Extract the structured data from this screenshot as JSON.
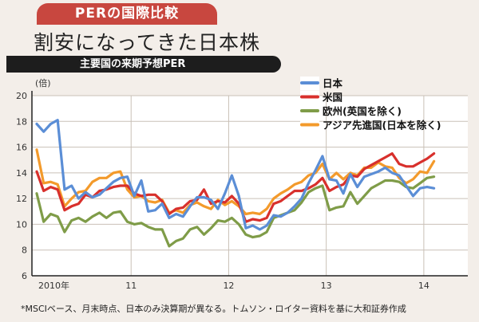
{
  "header": {
    "tag": "PERの国際比較",
    "title": "割安になってきた日本株",
    "subtitle": "主要国の来期予想PER"
  },
  "footnote": "*MSCIベース、月末時点、日本のみ決算期が異なる。トムソン・ロイター資料を基に大和証券作成",
  "colors": {
    "background": "#f3eee9",
    "tag": "#c8473f",
    "grid": "#c9c0b7",
    "axis": "#222222"
  },
  "chart_data": {
    "type": "line",
    "ylabel": "(倍)",
    "ylim": [
      6,
      20
    ],
    "yticks": [
      6,
      8,
      10,
      12,
      14,
      16,
      18,
      20
    ],
    "x_tick_labels": [
      "2010年",
      "11",
      "12",
      "13",
      "14"
    ],
    "legend_position": "top-right",
    "grid": true,
    "series": [
      {
        "name": "日本",
        "color": "#5b8ed6",
        "values": [
          17.8,
          17.2,
          17.8,
          18.1,
          12.7,
          13.0,
          12.0,
          12.5,
          12.1,
          12.3,
          12.8,
          13.3,
          13.6,
          13.7,
          12.2,
          13.4,
          11.0,
          11.1,
          11.6,
          10.5,
          10.8,
          10.6,
          11.4,
          12.1,
          12.1,
          11.9,
          11.2,
          12.4,
          13.8,
          12.2,
          9.7,
          9.9,
          9.6,
          9.9,
          10.7,
          10.6,
          10.9,
          11.4,
          12.0,
          13.2,
          14.2,
          15.3,
          13.5,
          13.4,
          12.4,
          13.9,
          12.9,
          13.7,
          13.9,
          14.1,
          14.4,
          14.0,
          13.8,
          13.0,
          12.2,
          12.8,
          12.9,
          12.8
        ]
      },
      {
        "name": "米国",
        "color": "#d8302c",
        "values": [
          14.1,
          12.6,
          12.9,
          12.7,
          11.1,
          11.4,
          11.6,
          12.3,
          12.1,
          12.6,
          12.7,
          12.9,
          13.0,
          13.0,
          12.4,
          12.2,
          12.3,
          12.3,
          11.8,
          10.8,
          11.2,
          11.3,
          11.8,
          11.9,
          12.7,
          11.6,
          11.8,
          11.7,
          12.2,
          11.6,
          10.2,
          10.4,
          10.3,
          10.5,
          11.6,
          11.8,
          12.2,
          12.6,
          12.6,
          12.8,
          13.1,
          13.6,
          12.6,
          12.9,
          13.1,
          13.8,
          13.7,
          14.3,
          14.6,
          14.9,
          15.2,
          15.5,
          14.7,
          14.5,
          14.5,
          14.8,
          15.1,
          15.5
        ]
      },
      {
        "name": "欧州(英国を除く)",
        "color": "#7f9c48",
        "values": [
          12.4,
          10.2,
          10.8,
          10.6,
          9.4,
          10.3,
          10.5,
          10.2,
          10.6,
          10.9,
          10.5,
          10.9,
          11.0,
          10.2,
          10.0,
          10.1,
          9.8,
          9.6,
          9.6,
          8.3,
          8.7,
          8.9,
          9.6,
          9.8,
          9.2,
          9.7,
          10.3,
          10.2,
          10.5,
          10.0,
          9.2,
          9.0,
          9.1,
          9.4,
          10.5,
          10.7,
          10.9,
          11.1,
          11.7,
          12.5,
          12.8,
          13.0,
          11.1,
          11.3,
          11.4,
          12.5,
          11.6,
          12.2,
          12.8,
          13.1,
          13.4,
          13.4,
          13.3,
          12.9,
          12.8,
          13.2,
          13.6,
          13.7
        ]
      },
      {
        "name": "アジア先進国(日本を除く)",
        "color": "#f39a2b",
        "values": [
          15.8,
          13.2,
          13.3,
          13.1,
          11.4,
          12.0,
          12.5,
          12.6,
          13.3,
          13.6,
          13.6,
          14.0,
          14.1,
          12.7,
          12.1,
          12.2,
          11.8,
          11.7,
          11.9,
          10.9,
          11.1,
          10.9,
          11.5,
          11.7,
          11.4,
          11.2,
          11.9,
          11.5,
          11.8,
          11.4,
          10.8,
          10.9,
          10.8,
          11.2,
          12.0,
          12.4,
          12.7,
          13.1,
          13.3,
          13.8,
          14.0,
          14.7,
          13.5,
          14.0,
          13.5,
          14.0,
          13.8,
          14.4,
          14.4,
          14.8,
          14.5,
          14.4,
          13.6,
          13.2,
          13.5,
          14.1,
          14.0,
          14.9
        ]
      }
    ]
  }
}
